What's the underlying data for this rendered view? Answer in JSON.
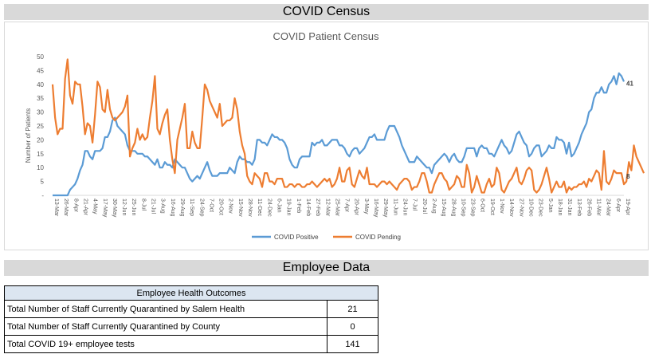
{
  "header": {
    "census_title": "COVID Census",
    "employee_title": "Employee Data"
  },
  "chart_data": {
    "type": "line",
    "title": "COVID Patient Census",
    "ylabel": "Number of Patients",
    "xlabel": "",
    "ylim": [
      0,
      50
    ],
    "yticks": [
      "-",
      "5",
      "10",
      "15",
      "20",
      "25",
      "30",
      "35",
      "40",
      "45",
      "50"
    ],
    "legend_position": "bottom",
    "series": [
      {
        "name": "COVID Positive",
        "color": "#5b9bd5",
        "end_label": "41",
        "values": [
          0,
          0,
          0,
          0,
          0,
          0,
          0,
          2,
          3,
          4,
          6,
          9,
          11,
          16,
          16,
          14,
          13,
          16,
          16,
          16,
          17,
          21,
          21,
          23,
          27,
          28,
          25,
          24,
          23,
          22,
          18,
          16,
          16,
          16,
          15,
          15,
          15,
          14,
          14,
          13,
          12,
          11,
          13,
          10,
          10,
          12,
          11,
          11,
          10,
          13,
          12,
          11,
          10,
          10,
          8,
          6,
          5,
          6,
          7,
          6,
          8,
          10,
          12,
          9,
          7,
          7,
          7,
          8,
          8,
          8,
          8,
          10,
          9,
          8,
          12,
          14,
          13,
          13,
          12,
          12,
          11,
          13,
          20,
          20,
          19,
          19,
          18,
          20,
          22,
          21,
          21,
          20,
          20,
          19,
          17,
          13,
          11,
          10,
          10,
          13,
          14,
          14,
          14,
          14,
          19,
          18,
          19,
          19,
          20,
          18,
          18,
          19,
          20,
          20,
          20,
          18,
          18,
          17,
          15,
          14,
          16,
          17,
          17,
          15,
          16,
          17,
          19,
          21,
          21,
          22,
          20,
          20,
          20,
          20,
          23,
          25,
          25,
          25,
          23,
          21,
          18,
          16,
          14,
          12,
          12,
          12,
          14,
          13,
          12,
          11,
          10,
          10,
          8,
          11,
          12,
          13,
          14,
          15,
          14,
          12,
          14,
          15,
          13,
          12,
          12,
          14,
          17,
          17,
          17,
          17,
          14,
          17,
          18,
          17,
          17,
          15,
          15,
          14,
          16,
          18,
          20,
          18,
          17,
          15,
          16,
          19,
          22,
          23,
          21,
          19,
          18,
          14,
          15,
          17,
          18,
          18,
          14,
          15,
          16,
          18,
          17,
          17,
          21,
          20,
          20,
          19,
          15,
          19,
          14,
          15,
          17,
          19,
          22,
          24,
          26,
          30,
          31,
          35,
          37,
          37,
          39,
          37,
          37,
          40,
          41,
          43,
          40,
          44,
          43,
          41
        ]
      },
      {
        "name": "COVID Pending",
        "color": "#ed7d31",
        "end_label": "8",
        "values": [
          40,
          28,
          22,
          24,
          24,
          42,
          49,
          36,
          33,
          41,
          40,
          40,
          32,
          22,
          26,
          25,
          19,
          29,
          41,
          39,
          31,
          30,
          38,
          31,
          28,
          27,
          28,
          29,
          30,
          32,
          36,
          14,
          17,
          19,
          24,
          20,
          22,
          20,
          21,
          28,
          34,
          43,
          24,
          22,
          26,
          29,
          31,
          20,
          13,
          8,
          20,
          24,
          28,
          33,
          17,
          17,
          23,
          19,
          17,
          17,
          28,
          40,
          38,
          34,
          32,
          30,
          28,
          33,
          25,
          26,
          27,
          27,
          28,
          35,
          31,
          23,
          18,
          15,
          7,
          5,
          4,
          8,
          7,
          6,
          3,
          8,
          8,
          5,
          5,
          4,
          6,
          6,
          6,
          3,
          3,
          4,
          4,
          3,
          4,
          4,
          3,
          3,
          4,
          4,
          5,
          4,
          3,
          4,
          5,
          6,
          5,
          6,
          3,
          4,
          6,
          10,
          5,
          5,
          9,
          10,
          4,
          3,
          6,
          9,
          7,
          6,
          10,
          4,
          4,
          4,
          3,
          4,
          5,
          5,
          4,
          5,
          4,
          3,
          2,
          4,
          5,
          6,
          6,
          5,
          2,
          3,
          3,
          5,
          8,
          8,
          5,
          1,
          1,
          4,
          6,
          8,
          8,
          6,
          5,
          2,
          3,
          4,
          7,
          6,
          3,
          3,
          11,
          8,
          1,
          3,
          7,
          4,
          1,
          1,
          4,
          6,
          3,
          4,
          10,
          8,
          2,
          1,
          3,
          5,
          6,
          8,
          10,
          5,
          4,
          6,
          9,
          10,
          9,
          2,
          1,
          2,
          4,
          7,
          10,
          6,
          1,
          3,
          5,
          3,
          3,
          5,
          1,
          3,
          2,
          3,
          3,
          4,
          4,
          5,
          3,
          6,
          5,
          7,
          9,
          8,
          2,
          16,
          5,
          4,
          6,
          9,
          8,
          8,
          8,
          4,
          5,
          12,
          9,
          18,
          14,
          12,
          10,
          8
        ]
      }
    ],
    "x_tick_labels": [
      "13-Mar",
      "26-Mar",
      "8-Apr",
      "21-Apr",
      "4-May",
      "17-May",
      "30-May",
      "12-Jun",
      "25-Jun",
      "8-Jul",
      "21-Jul",
      "3-Aug",
      "16-Aug",
      "29-Aug",
      "11-Sep",
      "24-Sep",
      "7-Oct",
      "20-Oct",
      "2-Nov",
      "15-Nov",
      "28-Nov",
      "11-Dec",
      "24-Dec",
      "6-Jan",
      "19-Jan",
      "1-Feb",
      "14-Feb",
      "27-Feb",
      "12-Mar",
      "25-Mar",
      "7-Apr",
      "20-Apr",
      "3-May",
      "16-May",
      "29-May",
      "11-Jun",
      "24-Jun",
      "7-Jul",
      "20-Jul",
      "2-Aug",
      "15-Aug",
      "28-Aug",
      "10-Sep",
      "23-Sep",
      "6-Oct",
      "19-Oct",
      "1-Nov",
      "14-Nov",
      "27-Nov",
      "10-Dec",
      "23-Dec",
      "5-Jan",
      "18-Jan",
      "31-Jan",
      "13-Feb",
      "26-Feb",
      "11-Mar",
      "24-Mar",
      "6-Apr",
      "19-Apr"
    ]
  },
  "employee_table": {
    "title": "Employee Health Outcomes",
    "rows": [
      {
        "label": "Total Number of Staff Currently Quarantined by Salem Health",
        "value": "21"
      },
      {
        "label": "Total Number of Staff Currently Quarantined by County",
        "value": "0"
      },
      {
        "label": "Total COVID 19+ employee tests",
        "value": "141"
      }
    ]
  }
}
